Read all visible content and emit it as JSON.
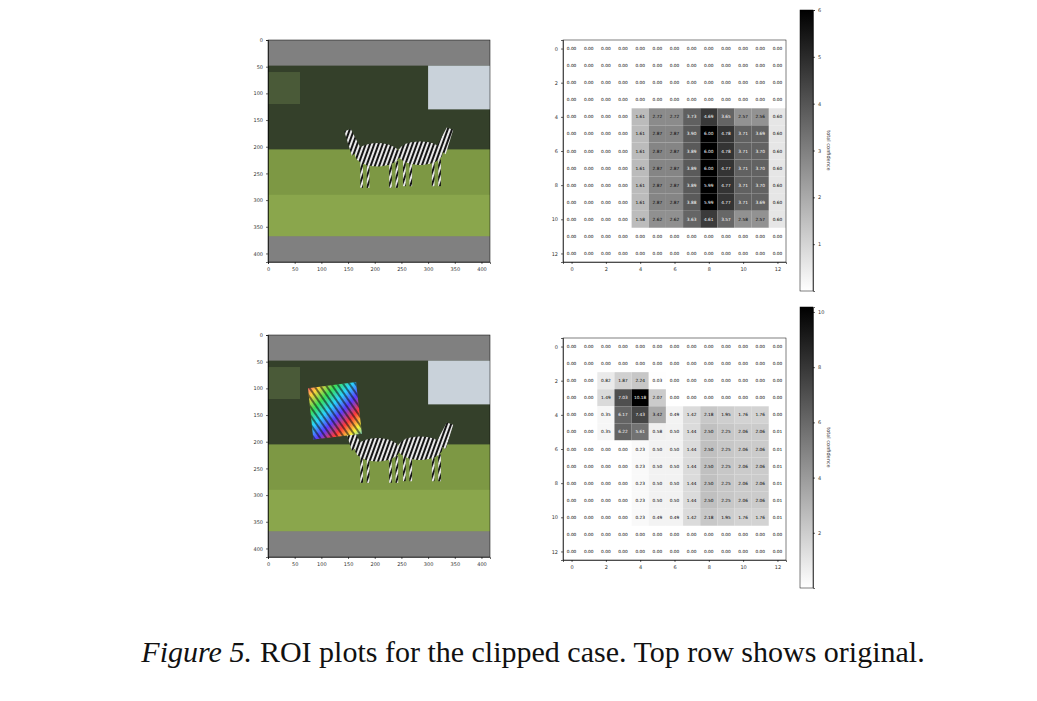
{
  "chart_data": [
    {
      "type": "image",
      "xlim": [
        0,
        416
      ],
      "ylim": [
        416,
        0
      ],
      "xticks": [
        0,
        50,
        100,
        150,
        200,
        250,
        300,
        350,
        400
      ],
      "yticks": [
        0,
        50,
        100,
        150,
        200,
        250,
        300,
        350,
        400
      ]
    },
    {
      "type": "heatmap",
      "xlim": [
        -0.5,
        12.5
      ],
      "ylim": [
        12.5,
        -0.5
      ],
      "xticks": [
        0,
        2,
        4,
        6,
        8,
        10,
        12
      ],
      "yticks": [
        0,
        2,
        4,
        6,
        8,
        10,
        12
      ],
      "cells": [
        [
          0,
          0,
          0,
          0,
          0,
          0,
          0,
          0,
          0,
          0,
          0,
          0,
          0
        ],
        [
          0,
          0,
          0,
          0,
          0,
          0,
          0,
          0,
          0,
          0,
          0,
          0,
          0
        ],
        [
          0,
          0,
          0,
          0,
          0,
          0,
          0,
          0,
          0,
          0,
          0,
          0,
          0
        ],
        [
          0,
          0,
          0,
          0,
          0,
          0,
          0,
          0,
          0,
          0,
          0,
          0,
          0
        ],
        [
          0,
          0,
          0,
          0,
          1.61,
          2.72,
          2.72,
          3.73,
          4.69,
          3.65,
          2.57,
          2.56,
          0.6
        ],
        [
          0,
          0,
          0,
          0,
          1.61,
          2.87,
          2.87,
          3.9,
          6,
          4.78,
          3.71,
          3.69,
          0.6
        ],
        [
          0,
          0,
          0,
          0,
          1.61,
          2.87,
          2.87,
          3.89,
          6,
          4.78,
          3.71,
          3.7,
          0.6
        ],
        [
          0,
          0,
          0,
          0,
          1.61,
          2.87,
          2.87,
          3.89,
          6,
          4.77,
          3.71,
          3.7,
          0.6
        ],
        [
          0,
          0,
          0,
          0,
          1.61,
          2.87,
          2.87,
          3.89,
          5.99,
          4.77,
          3.71,
          3.7,
          0.6
        ],
        [
          0,
          0,
          0,
          0,
          1.61,
          2.87,
          2.87,
          3.88,
          5.99,
          4.77,
          3.71,
          3.69,
          0.6
        ],
        [
          0,
          0,
          0,
          0,
          1.58,
          2.62,
          2.62,
          3.63,
          4.61,
          3.57,
          2.58,
          2.57,
          0.6
        ],
        [
          0,
          0,
          0,
          0,
          0,
          0,
          0,
          0,
          0,
          0,
          0,
          0,
          0
        ],
        [
          0,
          0,
          0,
          0,
          0,
          0,
          0,
          0,
          0,
          0,
          0,
          0,
          0
        ]
      ],
      "value_labels": [
        [
          "0.00",
          "0.00",
          "0.00",
          "0.00",
          "0.00",
          "0.00",
          "0.00",
          "0.00",
          "0.00",
          "0.00",
          "0.00",
          "0.00",
          "0.00"
        ],
        [
          "0.00",
          "0.00",
          "0.00",
          "0.00",
          "0.00",
          "0.00",
          "0.00",
          "0.00",
          "0.00",
          "0.00",
          "0.00",
          "0.00",
          "0.00"
        ],
        [
          "0.00",
          "0.00",
          "0.00",
          "0.00",
          "0.00",
          "0.00",
          "0.00",
          "0.00",
          "0.00",
          "0.00",
          "0.00",
          "0.00",
          "0.00"
        ],
        [
          "0.00",
          "0.00",
          "0.00",
          "0.00",
          "0.00",
          "0.00",
          "0.00",
          "0.00",
          "0.00",
          "0.00",
          "0.00",
          "0.00",
          "0.00"
        ],
        [
          "0.00",
          "0.00",
          "0.00",
          "0.00",
          "1.61",
          "2.72",
          "2.72",
          "3.73",
          "4.69",
          "3.65",
          "2.57",
          "2.56",
          "0.60"
        ],
        [
          "0.00",
          "0.00",
          "0.00",
          "0.00",
          "1.61",
          "2.87",
          "2.87",
          "3.90",
          "6.00",
          "4.78",
          "3.71",
          "3.69",
          "0.60"
        ],
        [
          "0.00",
          "0.00",
          "0.00",
          "0.00",
          "1.61",
          "2.87",
          "2.87",
          "3.89",
          "6.00",
          "4.78",
          "3.71",
          "3.70",
          "0.60"
        ],
        [
          "0.00",
          "0.00",
          "0.00",
          "0.00",
          "1.61",
          "2.87",
          "2.87",
          "3.89",
          "6.00",
          "4.77",
          "3.71",
          "3.70",
          "0.60"
        ],
        [
          "0.00",
          "0.00",
          "0.00",
          "0.00",
          "1.61",
          "2.87",
          "2.87",
          "3.89",
          "5.99",
          "4.77",
          "3.71",
          "3.70",
          "0.60"
        ],
        [
          "0.00",
          "0.00",
          "0.00",
          "0.00",
          "1.61",
          "2.87",
          "2.87",
          "3.88",
          "5.99",
          "4.77",
          "3.71",
          "3.69",
          "0.60"
        ],
        [
          "0.00",
          "0.00",
          "0.00",
          "0.00",
          "1.58",
          "2.62",
          "2.62",
          "3.63",
          "4.61",
          "3.57",
          "2.58",
          "2.57",
          "0.60"
        ],
        [
          "0.00",
          "0.00",
          "0.00",
          "0.00",
          "0.00",
          "0.00",
          "0.00",
          "0.00",
          "0.00",
          "0.00",
          "0.00",
          "0.00",
          "0.00"
        ],
        [
          "0.00",
          "0.00",
          "0.00",
          "0.00",
          "0.00",
          "0.00",
          "0.00",
          "0.00",
          "0.00",
          "0.00",
          "0.00",
          "0.00",
          "0.00"
        ]
      ],
      "colorbar": {
        "range": [
          0,
          6
        ],
        "ticks": [
          1,
          2,
          3,
          4,
          5,
          6
        ],
        "label": "total confidence"
      }
    },
    {
      "type": "image",
      "xlim": [
        0,
        416
      ],
      "ylim": [
        416,
        0
      ],
      "xticks": [
        0,
        50,
        100,
        150,
        200,
        250,
        300,
        350,
        400
      ],
      "yticks": [
        0,
        50,
        100,
        150,
        200,
        250,
        300,
        350,
        400
      ]
    },
    {
      "type": "heatmap",
      "xlim": [
        -0.5,
        12.5
      ],
      "ylim": [
        12.5,
        -0.5
      ],
      "xticks": [
        0,
        2,
        4,
        6,
        8,
        10,
        12
      ],
      "yticks": [
        0,
        2,
        4,
        6,
        8,
        10,
        12
      ],
      "cells": [
        [
          0,
          0,
          0,
          0,
          0,
          0,
          0,
          0,
          0,
          0,
          0,
          0,
          0
        ],
        [
          0,
          0,
          0,
          0,
          0,
          0,
          0,
          0,
          0,
          0,
          0,
          0,
          0
        ],
        [
          0,
          0,
          0.82,
          1.87,
          2.24,
          0.03,
          0,
          0,
          0,
          0,
          0,
          0,
          0
        ],
        [
          0,
          0,
          1.49,
          7.03,
          10.18,
          2.07,
          0,
          0,
          0,
          0,
          0,
          0,
          0
        ],
        [
          0,
          0,
          0.35,
          6.17,
          7.43,
          3.42,
          0.49,
          1.42,
          2.18,
          1.95,
          1.76,
          1.76,
          0
        ],
        [
          0,
          0,
          0.35,
          6.22,
          5.61,
          0.58,
          0.5,
          1.44,
          2.5,
          2.25,
          2.06,
          2.06,
          0.01
        ],
        [
          0,
          0,
          0,
          0,
          0.23,
          0.5,
          0.5,
          1.44,
          2.5,
          2.25,
          2.06,
          2.06,
          0.01
        ],
        [
          0,
          0,
          0,
          0,
          0.23,
          0.5,
          0.5,
          1.44,
          2.5,
          2.25,
          2.06,
          2.06,
          0.01
        ],
        [
          0,
          0,
          0,
          0,
          0.23,
          0.5,
          0.5,
          1.44,
          2.5,
          2.25,
          2.06,
          2.06,
          0.01
        ],
        [
          0,
          0,
          0,
          0,
          0.23,
          0.5,
          0.5,
          1.44,
          2.5,
          2.25,
          2.06,
          2.06,
          0.01
        ],
        [
          0,
          0,
          0,
          0,
          0.23,
          0.49,
          0.49,
          1.42,
          2.18,
          1.95,
          1.76,
          1.76,
          0.01
        ],
        [
          0,
          0,
          0,
          0,
          0,
          0,
          0,
          0,
          0,
          0,
          0,
          0,
          0
        ],
        [
          0,
          0,
          0,
          0,
          0,
          0,
          0,
          0,
          0,
          0,
          0,
          0,
          0
        ]
      ],
      "value_labels": [
        [
          "0.00",
          "0.00",
          "0.00",
          "0.00",
          "0.00",
          "0.00",
          "0.00",
          "0.00",
          "0.00",
          "0.00",
          "0.00",
          "0.00",
          "0.00"
        ],
        [
          "0.00",
          "0.00",
          "0.00",
          "0.00",
          "0.00",
          "0.00",
          "0.00",
          "0.00",
          "0.00",
          "0.00",
          "0.00",
          "0.00",
          "0.00"
        ],
        [
          "0.00",
          "0.00",
          "0.82",
          "1.87",
          "2.24",
          "0.03",
          "0.00",
          "0.00",
          "0.00",
          "0.00",
          "0.00",
          "0.00",
          "0.00"
        ],
        [
          "0.00",
          "0.00",
          "1.49",
          "7.03",
          "10.18",
          "2.07",
          "0.00",
          "0.00",
          "0.00",
          "0.00",
          "0.00",
          "0.00",
          "0.00"
        ],
        [
          "0.00",
          "0.00",
          "0.35",
          "6.17",
          "7.43",
          "3.42",
          "0.49",
          "1.42",
          "2.18",
          "1.95",
          "1.76",
          "1.76",
          "0.00"
        ],
        [
          "0.00",
          "0.00",
          "0.35",
          "6.22",
          "5.61",
          "0.58",
          "0.50",
          "1.44",
          "2.50",
          "2.25",
          "2.06",
          "2.06",
          "0.01"
        ],
        [
          "0.00",
          "0.00",
          "0.00",
          "0.00",
          "0.23",
          "0.50",
          "0.50",
          "1.44",
          "2.50",
          "2.25",
          "2.06",
          "2.06",
          "0.01"
        ],
        [
          "0.00",
          "0.00",
          "0.00",
          "0.00",
          "0.23",
          "0.50",
          "0.50",
          "1.44",
          "2.50",
          "2.25",
          "2.06",
          "2.06",
          "0.01"
        ],
        [
          "0.00",
          "0.00",
          "0.00",
          "0.00",
          "0.23",
          "0.50",
          "0.50",
          "1.44",
          "2.50",
          "2.25",
          "2.06",
          "2.06",
          "0.01"
        ],
        [
          "0.00",
          "0.00",
          "0.00",
          "0.00",
          "0.23",
          "0.50",
          "0.50",
          "1.44",
          "2.50",
          "2.25",
          "2.06",
          "2.06",
          "0.01"
        ],
        [
          "0.00",
          "0.00",
          "0.00",
          "0.00",
          "0.23",
          "0.49",
          "0.49",
          "1.42",
          "2.18",
          "1.95",
          "1.76",
          "1.76",
          "0.01"
        ],
        [
          "0.00",
          "0.00",
          "0.00",
          "0.00",
          "0.00",
          "0.00",
          "0.00",
          "0.00",
          "0.00",
          "0.00",
          "0.00",
          "0.00",
          "0.00"
        ],
        [
          "0.00",
          "0.00",
          "0.00",
          "0.00",
          "0.00",
          "0.00",
          "0.00",
          "0.00",
          "0.00",
          "0.00",
          "0.00",
          "0.00",
          "0.00"
        ]
      ],
      "colorbar": {
        "range": [
          0,
          10.18
        ],
        "ticks": [
          2,
          4,
          6,
          8,
          10
        ],
        "label": "total confidence"
      }
    }
  ],
  "caption": {
    "label": "Figure 5.",
    "text": "ROI plots for the clipped case. Top row shows original."
  }
}
